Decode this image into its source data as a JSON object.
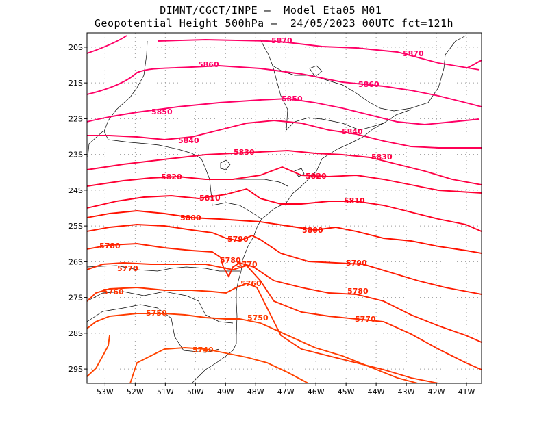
{
  "title": {
    "line1": "DIMNT/CGCT/INPE –  Model Eta05_M01_",
    "line2": "Geopotential Height 500hPa –  24/05/2023 00UTC fct=121h"
  },
  "axes": {
    "lat_labels": [
      "20S",
      "21S",
      "22S",
      "23S",
      "24S",
      "25S",
      "26S",
      "27S",
      "28S",
      "29S"
    ],
    "lon_labels": [
      "53W",
      "52W",
      "51W",
      "50W",
      "49W",
      "48W",
      "47W",
      "46W",
      "45W",
      "44W",
      "43W",
      "42W",
      "41W"
    ],
    "lat_range": [
      -29.4,
      -19.6
    ],
    "lon_range": [
      -53.6,
      -40.5
    ],
    "grid": "dotted"
  },
  "contours": [
    {
      "value": "5870",
      "color": "#ff0066"
    },
    {
      "value": "5860",
      "color": "#ff0066"
    },
    {
      "value": "5850",
      "color": "#ff0066"
    },
    {
      "value": "5840",
      "color": "#ff0055"
    },
    {
      "value": "5830",
      "color": "#ff0044"
    },
    {
      "value": "5820",
      "color": "#ff0033"
    },
    {
      "value": "5810",
      "color": "#ff0022"
    },
    {
      "value": "5800",
      "color": "#ff1100"
    },
    {
      "value": "5790",
      "color": "#ff1a00"
    },
    {
      "value": "5780",
      "color": "#ff2200"
    },
    {
      "value": "5770",
      "color": "#ff2a00"
    },
    {
      "value": "5760",
      "color": "#ff3300"
    },
    {
      "value": "5750",
      "color": "#ff3c00"
    },
    {
      "value": "5740",
      "color": "#ff4400"
    }
  ]
}
